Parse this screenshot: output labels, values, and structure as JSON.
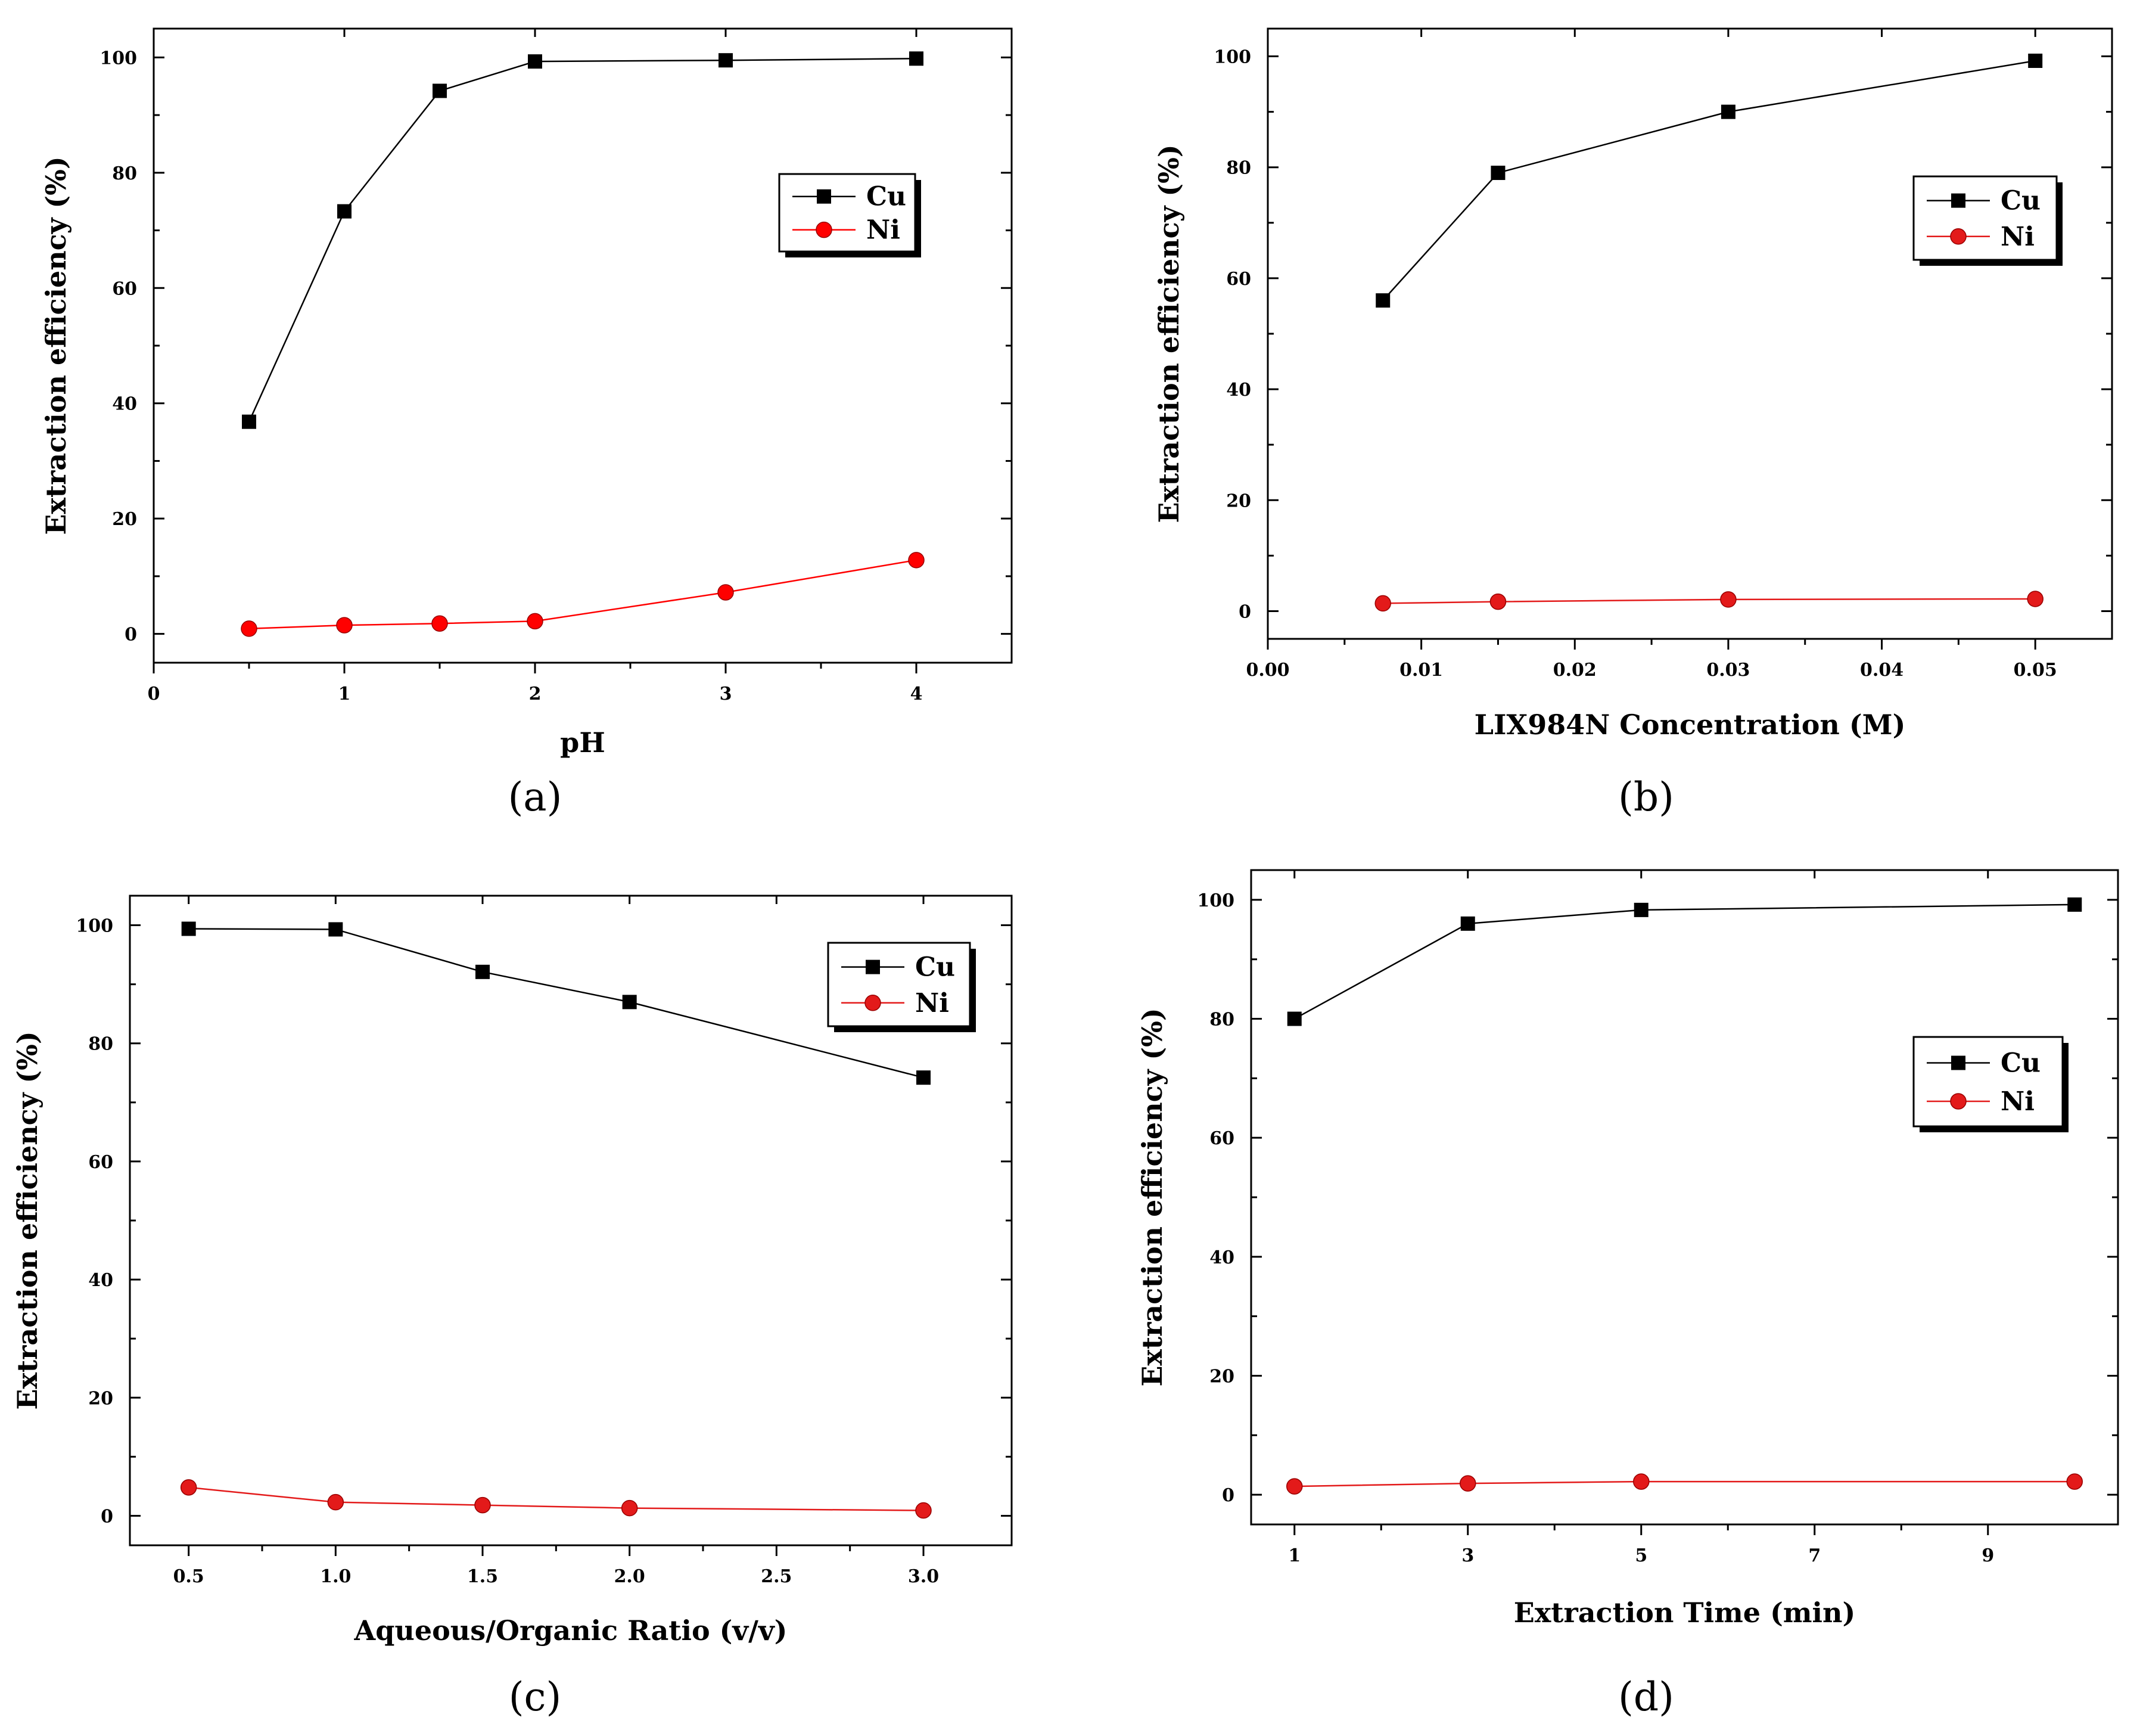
{
  "panels": [
    {
      "id": "a",
      "caption": "(a)",
      "legend": [
        "Cu",
        "Ni"
      ],
      "chart_data": {
        "type": "line",
        "xlabel": "pH",
        "ylabel": "Extraction efficiency (%)",
        "xlim": [
          0,
          4.5
        ],
        "ylim": [
          -5,
          105
        ],
        "xticks": [
          0,
          1,
          2,
          3,
          4
        ],
        "xtick_labels": [
          "0",
          "1",
          "2",
          "3",
          "4"
        ],
        "yticks": [
          0,
          20,
          40,
          60,
          80,
          100
        ],
        "x": [
          0.5,
          1,
          1.5,
          2,
          3,
          4
        ],
        "series": [
          {
            "name": "Cu",
            "marker": "square",
            "color": "#000000",
            "values": [
              36.8,
              73.3,
              94.2,
              99.3,
              99.5,
              99.8
            ]
          },
          {
            "name": "Ni",
            "marker": "circle",
            "color": "#ff0000",
            "values": [
              0.9,
              1.5,
              1.8,
              2.2,
              7.2,
              12.8
            ]
          }
        ]
      }
    },
    {
      "id": "b",
      "caption": "(b)",
      "legend": [
        "Cu",
        "Ni"
      ],
      "chart_data": {
        "type": "line",
        "xlabel": "LIX984N Concentration (M)",
        "ylabel": "Extraction efficiency (%)",
        "xlim": [
          0,
          0.055
        ],
        "ylim": [
          -5,
          105
        ],
        "xticks": [
          0,
          0.01,
          0.02,
          0.03,
          0.04,
          0.05
        ],
        "xtick_labels": [
          "0.00",
          "0.01",
          "0.02",
          "0.03",
          "0.04",
          "0.05"
        ],
        "yticks": [
          0,
          20,
          40,
          60,
          80,
          100
        ],
        "x": [
          0.0075,
          0.015,
          0.03,
          0.05
        ],
        "series": [
          {
            "name": "Cu",
            "marker": "square",
            "color": "#000000",
            "values": [
              56,
              79,
              90,
              99.2
            ]
          },
          {
            "name": "Ni",
            "marker": "circle",
            "color": "#e31a1a",
            "values": [
              1.4,
              1.7,
              2.1,
              2.2
            ]
          }
        ]
      }
    },
    {
      "id": "c",
      "caption": "(c)",
      "legend": [
        "Cu",
        "Ni"
      ],
      "chart_data": {
        "type": "line",
        "xlabel": "Aqueous/Organic Ratio (v/v)",
        "ylabel": "Extraction efficiency (%)",
        "xlim": [
          0.3,
          3.3
        ],
        "ylim": [
          -5,
          105
        ],
        "xticks": [
          0.5,
          1.0,
          1.5,
          2.0,
          2.5,
          3.0
        ],
        "xtick_labels": [
          "0.5",
          "1.0",
          "1.5",
          "2.0",
          "2.5",
          "3.0"
        ],
        "yticks": [
          0,
          20,
          40,
          60,
          80,
          100
        ],
        "x": [
          0.5,
          1.0,
          1.5,
          2.0,
          3.0
        ],
        "series": [
          {
            "name": "Cu",
            "marker": "square",
            "color": "#000000",
            "values": [
              99.4,
              99.3,
              92.1,
              87.0,
              74.2
            ]
          },
          {
            "name": "Ni",
            "marker": "circle",
            "color": "#e31a1a",
            "values": [
              4.8,
              2.3,
              1.8,
              1.3,
              0.9
            ]
          }
        ]
      }
    },
    {
      "id": "d",
      "caption": "(d)",
      "legend": [
        "Cu",
        "Ni"
      ],
      "chart_data": {
        "type": "line",
        "xlabel": "Extraction Time (min)",
        "ylabel": "Extraction efficiency (%)",
        "xlim": [
          0.5,
          10.5
        ],
        "ylim": [
          -5,
          105
        ],
        "xticks": [
          1,
          3,
          5,
          7,
          9
        ],
        "xtick_labels": [
          "1",
          "3",
          "5",
          "7",
          "9"
        ],
        "yticks": [
          0,
          20,
          40,
          60,
          80,
          100
        ],
        "x": [
          1,
          3,
          5,
          10
        ],
        "series": [
          {
            "name": "Cu",
            "marker": "square",
            "color": "#000000",
            "values": [
              80,
              96,
              98.3,
              99.2
            ]
          },
          {
            "name": "Ni",
            "marker": "circle",
            "color": "#e31a1a",
            "values": [
              1.4,
              1.9,
              2.2,
              2.2
            ]
          }
        ]
      }
    }
  ]
}
